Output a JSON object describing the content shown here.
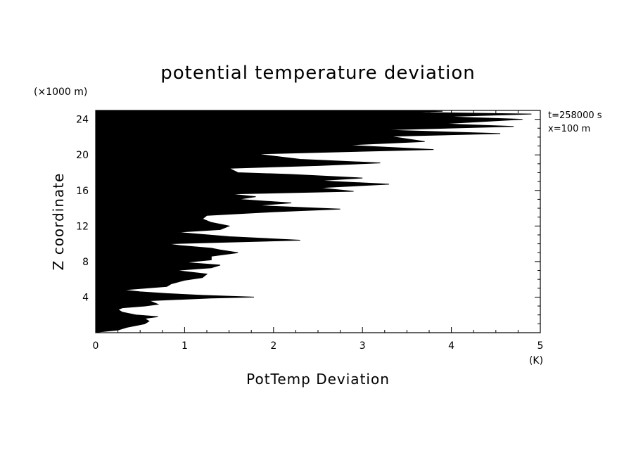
{
  "chart_data": {
    "type": "area",
    "title": "potential temperature deviation",
    "xlabel": "PotTemp Deviation",
    "ylabel": "Z coordinate",
    "x_unit": "(K)",
    "y_unit": "(×1000 m)",
    "xlim": [
      0,
      5
    ],
    "ylim": [
      0,
      25
    ],
    "x_ticks": [
      0,
      1,
      2,
      3,
      4,
      5
    ],
    "y_ticks": [
      4,
      8,
      12,
      16,
      20,
      24
    ],
    "x_tick_labels": [
      "0",
      "1",
      "2",
      "3",
      "4",
      "5"
    ],
    "y_tick_labels": [
      "4",
      "8",
      "12",
      "16",
      "20",
      "24"
    ],
    "annotations": [
      "t=258000 s",
      "x=100 m"
    ],
    "fill_color": "#000000",
    "grid": false,
    "series": [
      {
        "x": [
          0.05,
          0.25,
          0.35,
          0.55,
          0.6,
          0.55,
          0.7,
          0.45,
          0.3,
          0.25,
          0.3,
          0.55,
          0.7,
          0.6,
          1.3,
          1.78,
          1.2,
          0.8,
          0.5,
          0.3,
          0.8,
          0.85,
          1.0,
          1.2,
          1.25,
          0.9,
          1.3,
          1.4,
          1.0,
          1.3,
          1.3,
          1.6,
          1.4,
          1.3,
          0.95,
          0.8,
          2.3,
          1.5,
          0.9,
          1.4,
          1.5,
          1.3,
          1.2,
          1.25,
          2.0,
          2.75,
          1.8,
          2.2,
          1.6,
          1.8,
          1.5,
          2.9,
          2.5,
          3.3,
          2.5,
          3.0,
          2.2,
          1.6,
          1.5,
          2.5,
          3.2,
          2.3,
          1.8,
          3.8,
          2.8,
          3.7,
          3.3,
          4.55,
          3.2,
          4.7,
          3.9,
          4.8,
          3.9,
          4.9,
          3.5,
          3.9,
          3.4
        ],
        "y": [
          0.1,
          0.3,
          0.6,
          1.0,
          1.3,
          1.6,
          1.8,
          2.0,
          2.3,
          2.6,
          2.8,
          3.0,
          3.2,
          3.6,
          3.9,
          4.0,
          4.2,
          4.4,
          4.6,
          4.8,
          5.2,
          5.5,
          5.9,
          6.2,
          6.6,
          7.0,
          7.3,
          7.6,
          7.9,
          8.2,
          8.6,
          9.0,
          9.3,
          9.5,
          9.8,
          10.0,
          10.4,
          10.8,
          11.3,
          11.6,
          12.0,
          12.4,
          12.8,
          13.2,
          13.6,
          13.9,
          14.3,
          14.6,
          15.0,
          15.3,
          15.6,
          15.9,
          16.3,
          16.7,
          17.1,
          17.4,
          17.8,
          18.0,
          18.5,
          18.8,
          19.1,
          19.5,
          20.1,
          20.6,
          21.1,
          21.5,
          22.1,
          22.4,
          22.8,
          23.2,
          23.5,
          24.0,
          24.3,
          24.6,
          24.8,
          24.9,
          25.0
        ]
      }
    ]
  }
}
